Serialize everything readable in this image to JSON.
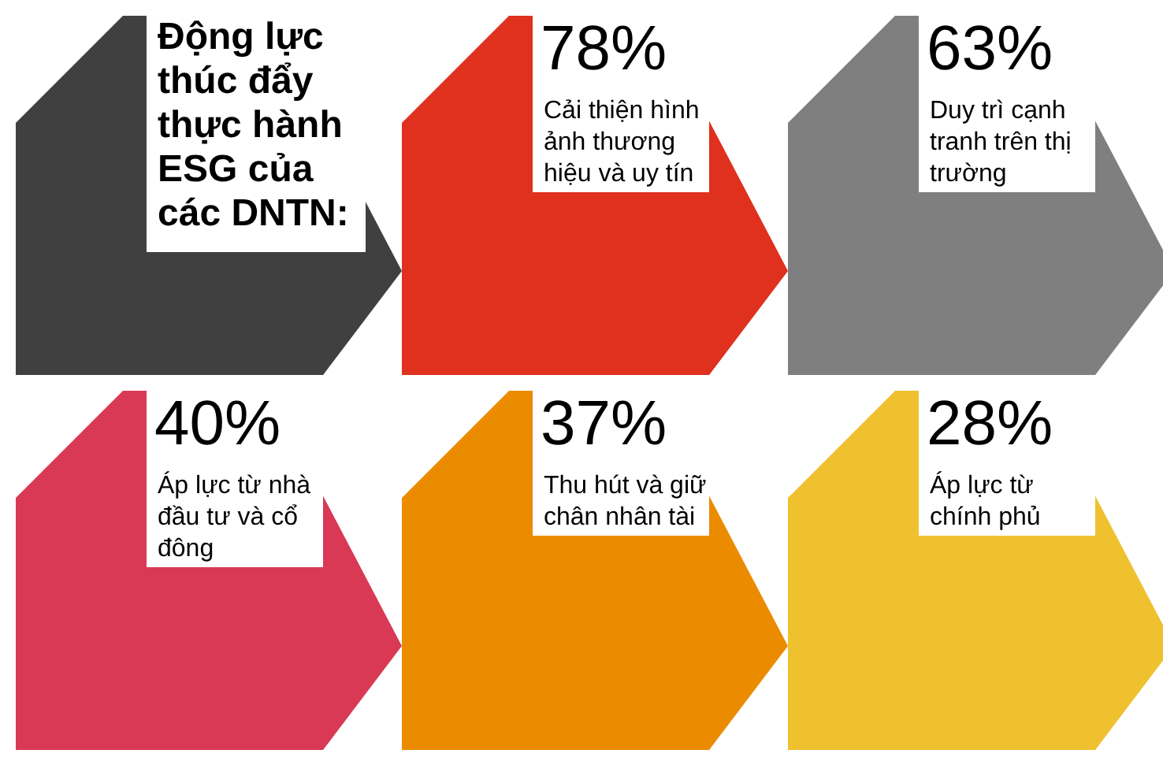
{
  "chart_data": {
    "type": "other",
    "title": "Động lực thúc đẩy thực hành ESG của các DNTN:",
    "categories": [
      null,
      "Cải thiện hình ảnh thương hiệu và uy tín",
      "Duy trì cạnh tranh trên thị trường",
      "Áp lực từ nhà đầu tư và cổ đông",
      "Thu hút và giữ chân nhân tài",
      "Áp lực từ chính phủ"
    ],
    "values": [
      null,
      78,
      63,
      40,
      37,
      28
    ],
    "value_labels": [
      null,
      "78%",
      "63%",
      "40%",
      "37%",
      "28%"
    ],
    "colors": [
      "#404040",
      "#e0301e",
      "#7f7f7f",
      "#d93954",
      "#eb8c00",
      "#efc12f"
    ]
  }
}
